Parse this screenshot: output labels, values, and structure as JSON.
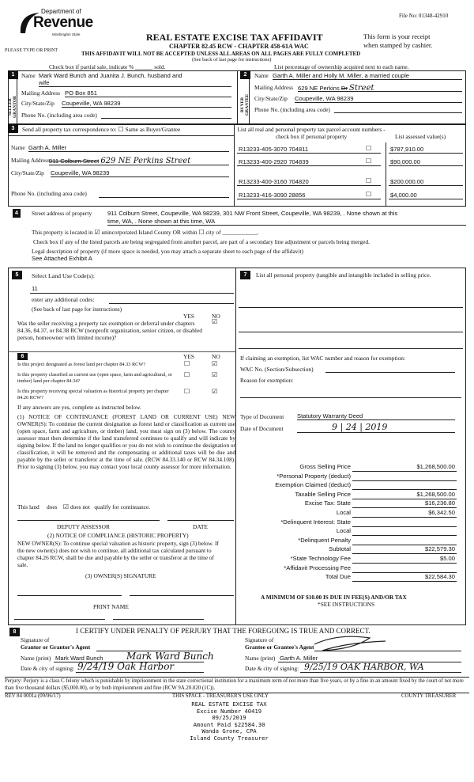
{
  "header": {
    "file_no": "File No:  01348-42910",
    "logo_top": "Department of",
    "logo_main": "Revenue",
    "logo_sub": "Washington State",
    "please": "PLEASE TYPE OR PRINT",
    "title": "REAL ESTATE EXCISE TAX AFFIDAVIT",
    "chapter": "CHAPTER 82.45 RCW - CHAPTER 458-61A WAC",
    "receipt1": "This form is your receipt",
    "receipt2": "when stamped by cashier.",
    "warning": "THIS AFFIDAVIT WILL NOT BE ACCEPTED UNLESS ALL AREAS ON ALL PAGES ARE FULLY COMPLETED",
    "see_back": "(See back of last page for instructions)",
    "partial": "Check box if partial sale, indicate % ______ sold.",
    "ownership": "List percentage of ownership acquired next to each name."
  },
  "seller": {
    "num": "1",
    "side": "SELLER GRANTOR",
    "name_label": "Name",
    "name": "Mark Ward Bunch and Juanita J. Bunch, husband and",
    "name2": "wife",
    "addr_label": "Mailing Address",
    "addr": "PO Box 851",
    "city_label": "City/State/Zip",
    "city": "Coupeville, WA  98239",
    "phone_label": "Phone No. (including area code)"
  },
  "buyer": {
    "num": "2",
    "side": "BUYER GRANTEE",
    "name_label": "Name",
    "name": "Garth A. Miller and Holly M. Miller, a married couple",
    "addr_label": "Mailing Address",
    "addr": "629 NE Perkins",
    "addr_struck": "Dr",
    "addr_hand": "Street",
    "city_label": "City/State/Zip",
    "city": "Coupeville, WA  98239",
    "phone_label": "Phone No. (including area code)"
  },
  "sec3": {
    "num": "3",
    "text": "Send all property tax correspondence to:",
    "same": "Same as Buyer/Grantee",
    "name_label": "Name",
    "name": "Garth A. Miller",
    "addr_label": "Mailing Address",
    "addr_struck": "911 Colburn Street",
    "addr_hand": "629 NE Perkins Street",
    "city_label": "City/State/Zip",
    "city": "Coupeville, WA  98239",
    "phone_label": "Phone No. (including area code)",
    "parcel_header": "List all real and personal property tax parcel account numbers - check box if personal property",
    "value_header": "List assessed value(s)",
    "parcels": [
      {
        "id": "R13233-405-3070   704811",
        "value": "$787,910.00"
      },
      {
        "id": "R13233-400-2920   704839",
        "value": "$90,000.00"
      },
      {
        "id": "R13233-400-3160   704820",
        "value": "$200,000.00"
      },
      {
        "id": "R13233-416-3090   28856",
        "value": "$4,000.00"
      }
    ]
  },
  "sec4": {
    "num": "4",
    "label": "Street address of property",
    "addr1": "911 Colburn Street, Coupeville, WA 98239, 301 NW Front Street, Coupeville, WA 98239, . None shown at this",
    "addr2": "time, WA, . None shown at this time, WA",
    "located_a": "This property is located in",
    "located_b": "unincorporated Island County OR within",
    "located_c": "city of ____________.",
    "segregated": "Check box if any of the listed parcels are being segregated from another parcel, are part of a secondary line adjustment or parcels being merged.",
    "legal_label": "Legal description of property (if more space is needed, you may attach a separate sheet to each page of the affidavit)",
    "legal": "See Attached Exhibit A"
  },
  "sec5": {
    "num": "5",
    "label": "Select Land Use Code(s):",
    "code": "11",
    "additional": "enter any additional codes:",
    "see_back": "(See back of last page for instructions)",
    "yes": "YES",
    "no": "NO",
    "question": "Was the seller receiving a property tax exemption or deferral under chapters 84.36, 84.37, or 84.38 RCW (nonprofit organization, senior citizen, or disabled person, homeowner with limited income)?"
  },
  "sec6": {
    "num": "6",
    "yes": "YES",
    "no": "NO",
    "questions": [
      "Is this project designated as forest land per chapter 84.33 RCW?",
      "Is this property classified as current use (open space, farm and agricultural, or timber) land per chapter 84.34?",
      "Is this property receiving special valuation as historical property per chapter 84.26 RCW?"
    ],
    "if_yes": "If any answers are yes, complete as instructed below.",
    "notice1": "(1) NOTICE OF CONTINUANCE (FOREST LAND OR CURRENT USE) NEW OWNER(S): To continue the current designation as forest land or classification as current use (open space, farm and agriculture, or timber) land, you must sign on (3) below. The county assessor must then determine if the land transferred continues to qualify and will indicate by signing below. If the land no longer qualifies or you do not wish to continue the designation or classification, it will be removed and the compensating or additional taxes will be due and payable by the seller or transferor at the time of sale. (RCW 84.33.140 or RCW 84.34.108). Prior to signing (3) below, you may contact your local county assessor for more information.",
    "this_land": "This land",
    "does": "does",
    "does_not": "does not",
    "qualify": "qualify for continuance.",
    "deputy": "DEPUTY ASSESSOR",
    "date": "DATE",
    "notice2_title": "(2) NOTICE OF COMPLIANCE (HISTORIC PROPERTY)",
    "notice2": "NEW OWNER(S): To continue special valuation as historic property, sign (3) below. If the new owner(s) does not wish to continue, all additional tax calculated pursuant to chapter 84.26 RCW, shall be due and payable by the seller or transferor at the time of sale.",
    "owner_sig": "(3) OWNER(S) SIGNATURE",
    "print_name": "PRINT NAME"
  },
  "sec7": {
    "num": "7",
    "text": "List all personal property (tangible and intangible included in selling price.",
    "exemption": "If claiming an exemption, list WAC number and reason for exemption:",
    "wac": "WAC No. (Section/Subsection)",
    "reason": "Reason for exemption:",
    "doc_type_label": "Type of Document",
    "doc_type": "Statutory Warranty Deed",
    "doc_date_label": "Date of Document",
    "doc_date": "9 | 24 | 2019",
    "fees": [
      {
        "label": "Gross Selling Price",
        "value": "$1,268,500.00"
      },
      {
        "label": "*Personal Property (deduct)",
        "value": ""
      },
      {
        "label": "Exemption Claimed (deduct)",
        "value": ""
      },
      {
        "label": "Taxable Selling Price",
        "value": "$1,268,500.00"
      },
      {
        "label": "Excise Tax:  State",
        "value": "$16,236.80"
      },
      {
        "label": "Local",
        "value": "$6,342.50"
      },
      {
        "label": "*Delinquent Interest:  State",
        "value": ""
      },
      {
        "label": "Local",
        "value": ""
      },
      {
        "label": "*Delinquent Penalty",
        "value": ""
      },
      {
        "label": "Subtotal",
        "value": "$22,579.30"
      },
      {
        "label": "*State Technology Fee",
        "value": "$5.00"
      },
      {
        "label": "*Affidavit Processing Fee",
        "value": ""
      },
      {
        "label": "Total Due",
        "value": "$22,584.30"
      }
    ],
    "minimum": "A MINIMUM OF $10.00 IS DUE IN FEE(S) AND/OR TAX",
    "see_instr": "*SEE INSTRUCTIONS"
  },
  "sec8": {
    "num": "8",
    "certify": "I CERTIFY UNDER PENALTY OF PERJURY THAT THE FOREGOING IS TRUE AND CORRECT.",
    "sig_of": "Signature of",
    "grantor_agent": "Grantor or Grantor's Agent",
    "grantee_agent": "Grantee or Grantee's Agent",
    "name_print": "Name (print)",
    "grantor_name": "Mark Ward Bunch",
    "grantor_hand": "Mark Ward Bunch",
    "grantee_name": "Garth A. Miller",
    "date_city": "Date & city of signing:",
    "grantor_date": "9/24/19    Oak Harbor",
    "grantee_date": "9/25/19   OAK HARBOR, WA"
  },
  "footer": {
    "perjury": "Perjury:  Perjury is a class C felony which is punishable by imprisonment in the state correctional institution for a maximum term of not more than five years, or by a fine in an amount fixed by the court of not more than five thousand dollars ($5,000.00), or by both imprisonment and fine (RCW 9A.20.020 (1C)).",
    "rev": "REV 84 0001a (09/06/17)",
    "treasurer_use": "THIS SPACE - TREASURER'S USE ONLY",
    "county_treasurer": "COUNTY TREASURER"
  },
  "stamp": [
    "REAL ESTATE EXCISE TAX",
    "Excise Number 40419",
    "09/25/2019",
    "Amount Paid $22584.30",
    "Wanda Grone, CPA",
    "Island County Treasurer"
  ]
}
